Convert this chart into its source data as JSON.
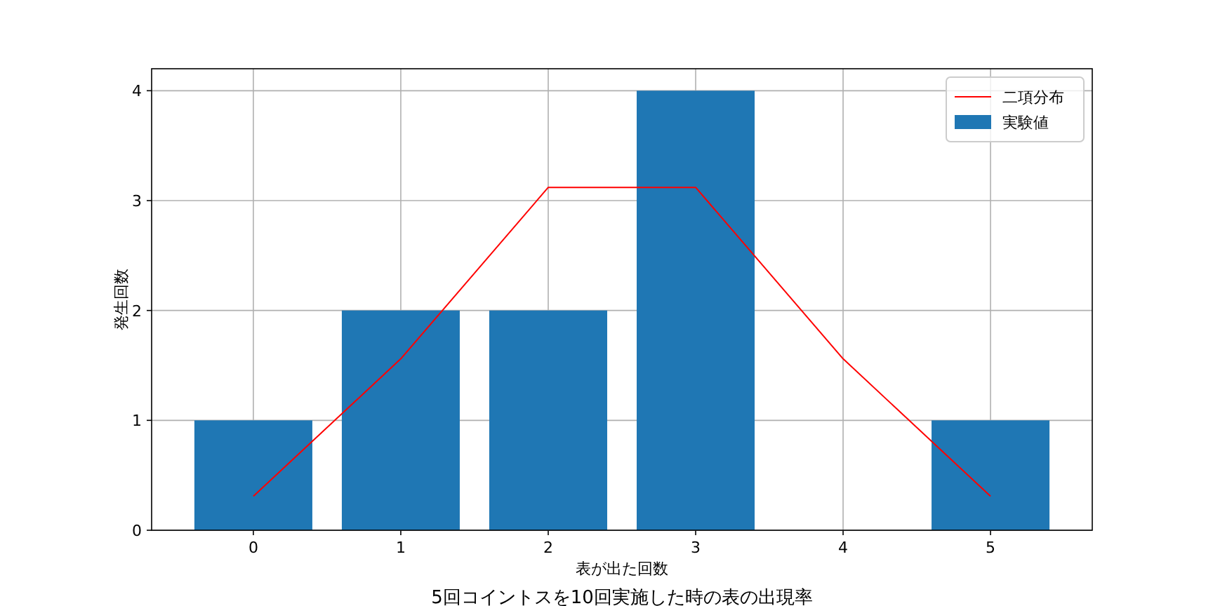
{
  "chart_data": {
    "type": "bar",
    "title": "5回コイントスを10回実施した時の表の出現率",
    "xlabel": "表が出た回数",
    "ylabel": "発生回数",
    "x": [
      0,
      1,
      2,
      3,
      4,
      5
    ],
    "series": [
      {
        "name": "二項分布",
        "type": "line",
        "color": "#ff0000",
        "values": [
          0.31,
          1.56,
          3.12,
          3.12,
          1.56,
          0.31
        ]
      },
      {
        "name": "実験値",
        "type": "bar",
        "color": "#1f77b4",
        "values": [
          1,
          2,
          2,
          4,
          0,
          1
        ]
      }
    ],
    "xlim": [
      -0.69,
      5.69
    ],
    "xticks": [
      0,
      1,
      2,
      3,
      4,
      5
    ],
    "ylim": [
      0,
      4.2
    ],
    "yticks": [
      0,
      1,
      2,
      3,
      4
    ],
    "grid": true,
    "legend": "top right",
    "marker": "none",
    "line_style": "solid"
  }
}
